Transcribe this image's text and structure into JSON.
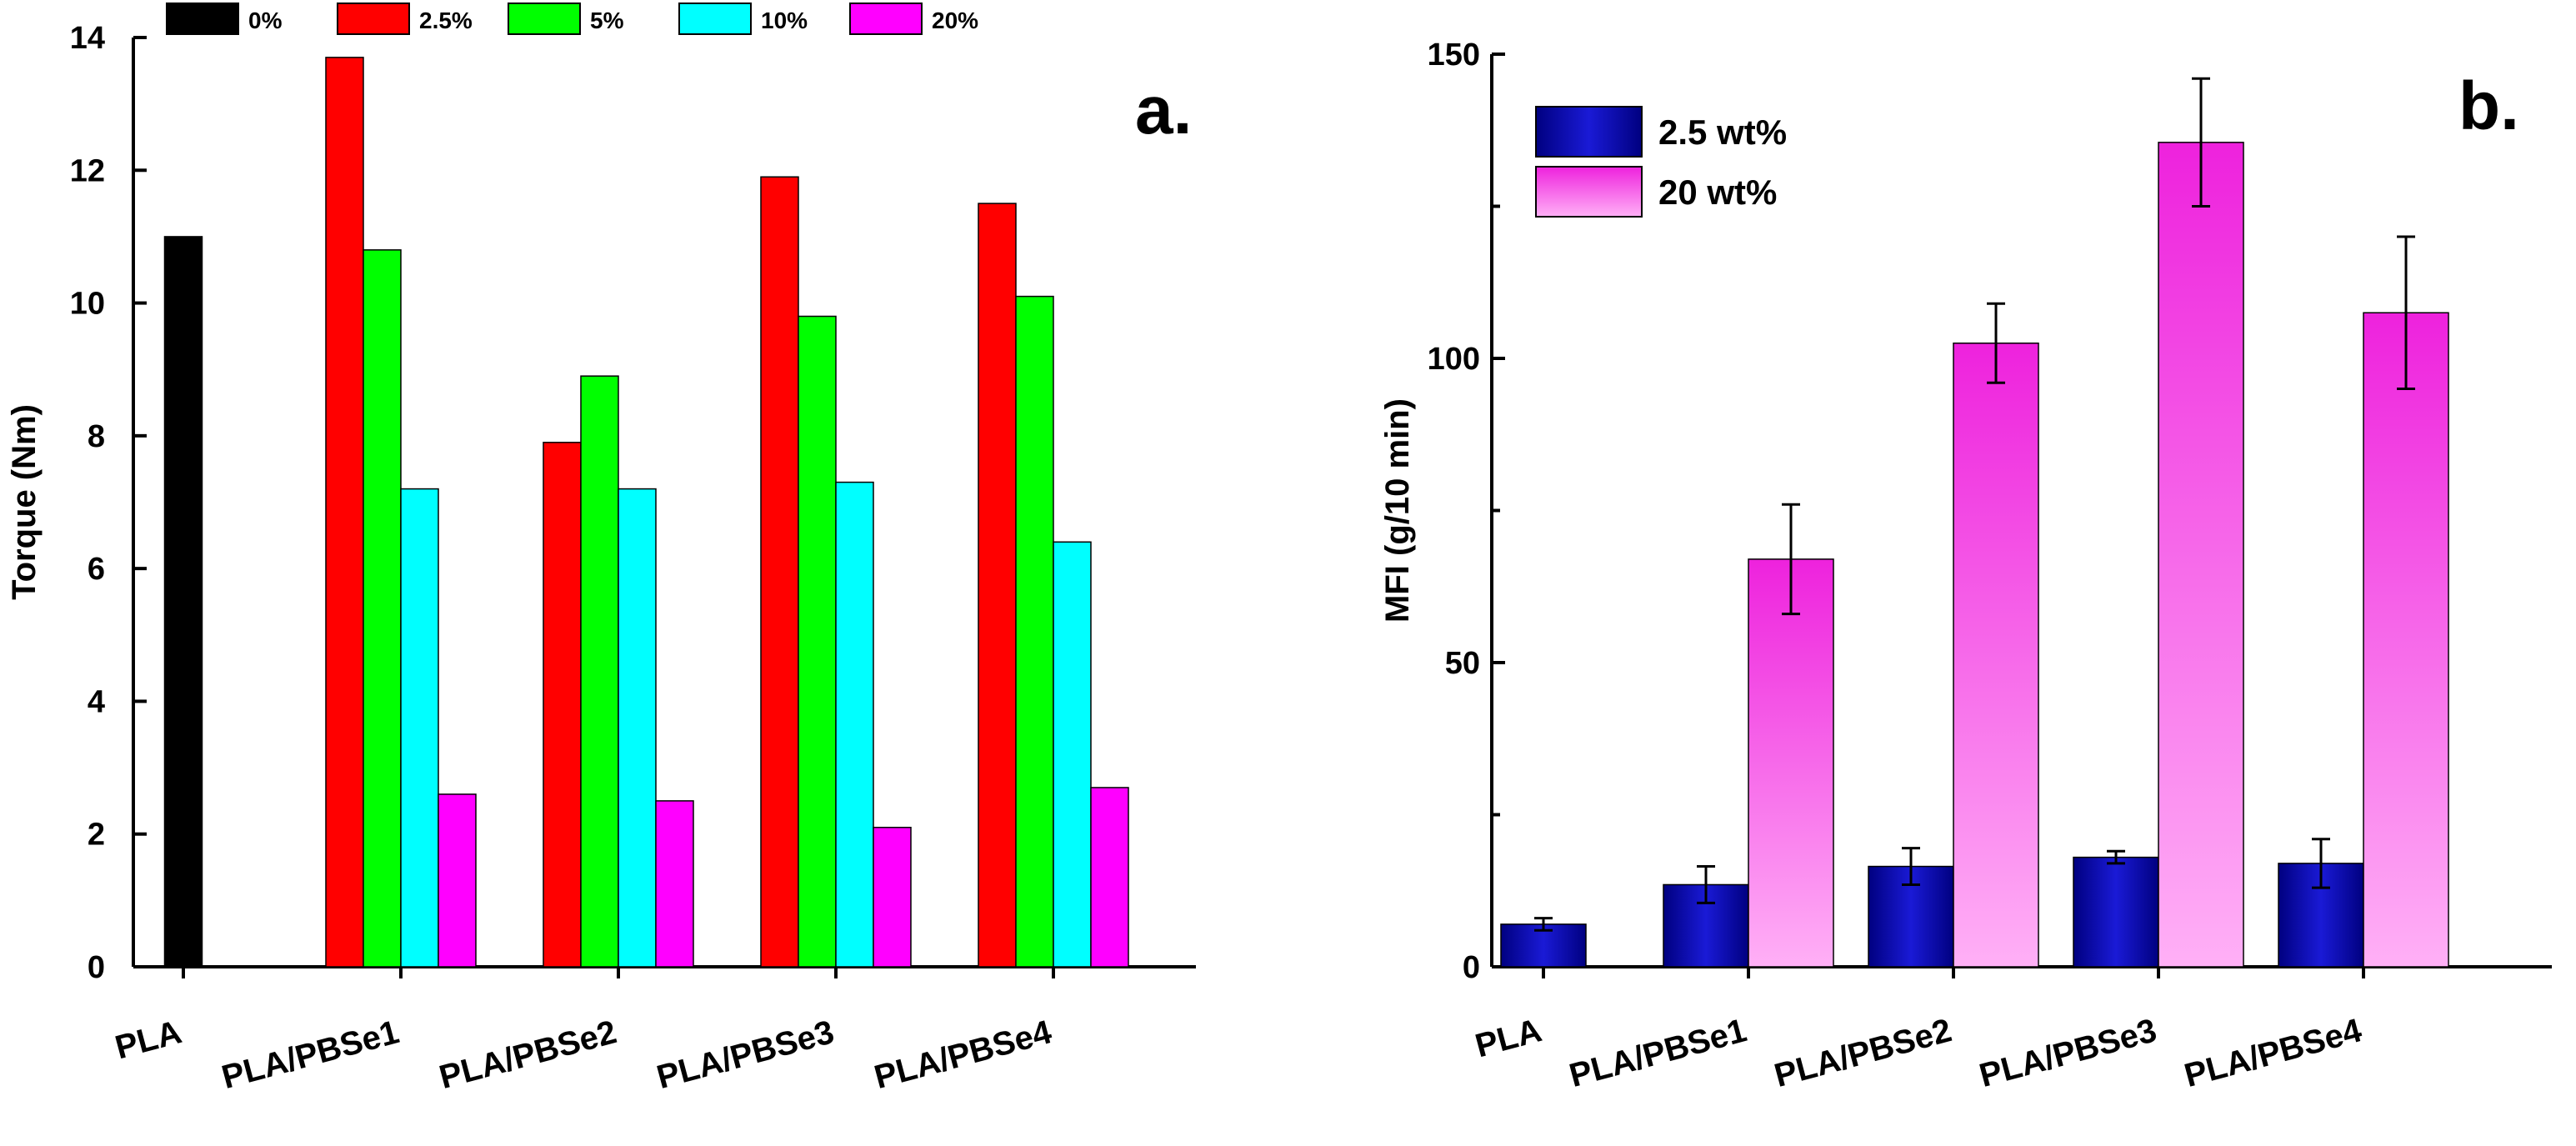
{
  "colors": {
    "axis": "#000000",
    "0%": "#000000",
    "2.5%": "#ff0000",
    "5%": "#00ff00",
    "10%": "#00ffff",
    "20%": "#ff00ff",
    "b_2.5": "#1a1ad6",
    "b_20": "#ff66ee"
  },
  "chart_data": [
    {
      "panel_label": "a.",
      "type": "bar",
      "ylabel": "Torque (Nm)",
      "xlabel": "",
      "ylim": [
        0,
        14
      ],
      "yticks": [
        0,
        2,
        4,
        6,
        8,
        10,
        12,
        14
      ],
      "categories": [
        "PLA",
        "PLA/PBSe1",
        "PLA/PBSe2",
        "PLA/PBSe3",
        "PLA/PBSe4"
      ],
      "legend_position": "top",
      "series": [
        {
          "name": "0%",
          "values": [
            11.0,
            null,
            null,
            null,
            null
          ]
        },
        {
          "name": "2.5%",
          "values": [
            null,
            13.7,
            7.9,
            11.9,
            11.5
          ]
        },
        {
          "name": "5%",
          "values": [
            null,
            10.8,
            8.9,
            9.8,
            10.1
          ]
        },
        {
          "name": "10%",
          "values": [
            null,
            7.2,
            7.2,
            7.3,
            6.4
          ]
        },
        {
          "name": "20%",
          "values": [
            null,
            2.6,
            2.5,
            2.1,
            2.7
          ]
        }
      ],
      "grid": false
    },
    {
      "panel_label": "b.",
      "type": "bar",
      "ylabel": "MFI (g/10 min)",
      "xlabel": "",
      "ylim": [
        0,
        150
      ],
      "yticks": [
        0,
        50,
        100,
        150
      ],
      "categories": [
        "PLA",
        "PLA/PBSe1",
        "PLA/PBSe2",
        "PLA/PBSe3",
        "PLA/PBSe4"
      ],
      "legend_position": "top-left",
      "series": [
        {
          "name": "2.5 wt%",
          "values": [
            7.0,
            13.5,
            16.5,
            18.0,
            17.0
          ],
          "errors": [
            1.0,
            3.0,
            3.0,
            1.0,
            4.0
          ]
        },
        {
          "name": "20 wt%",
          "values": [
            null,
            67.0,
            102.5,
            135.5,
            107.5
          ],
          "errors": [
            null,
            9.0,
            6.5,
            10.5,
            12.5
          ]
        }
      ],
      "grid": false
    }
  ]
}
